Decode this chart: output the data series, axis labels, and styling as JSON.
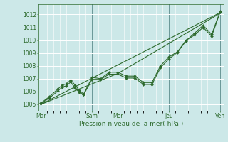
{
  "title": "",
  "xlabel": "Pression niveau de la mer( hPa )",
  "ylabel": "",
  "bg_color": "#cce8e8",
  "grid_color": "#ffffff",
  "line_color": "#2d6a2d",
  "tick_label_color": "#2d6a2d",
  "axis_label_color": "#2d6a2d",
  "ylim": [
    1004.5,
    1012.8
  ],
  "yticks": [
    1005,
    1006,
    1007,
    1008,
    1009,
    1010,
    1011,
    1012
  ],
  "x_day_labels": [
    "Mar",
    "",
    "Sam",
    "Mer",
    "",
    "Jeu",
    "",
    "Ven"
  ],
  "x_day_positions": [
    0,
    24,
    48,
    72,
    96,
    120,
    144,
    168
  ],
  "x_major_labels": [
    "Mar",
    "Sam",
    "Mer",
    "Jeu",
    "Ven"
  ],
  "x_major_positions": [
    0,
    48,
    72,
    120,
    168
  ],
  "vline_positions": [
    0,
    48,
    72,
    120,
    168
  ],
  "vline_color": "#5a8a8a",
  "series": [
    [
      0,
      1005.1,
      8,
      1005.6,
      16,
      1006.2,
      20,
      1006.5,
      24,
      1006.6,
      28,
      1006.9,
      32,
      1006.5,
      36,
      1006.1,
      40,
      1005.8,
      48,
      1007.1,
      56,
      1007.0,
      64,
      1007.5,
      72,
      1007.5,
      80,
      1007.2,
      88,
      1007.2,
      96,
      1006.7,
      104,
      1006.7,
      112,
      1008.0,
      120,
      1008.7,
      128,
      1009.1,
      136,
      1010.0,
      144,
      1010.4,
      152,
      1011.0,
      160,
      1010.3,
      168,
      1012.2
    ],
    [
      0,
      1005.05,
      8,
      1005.5,
      16,
      1006.05,
      20,
      1006.35,
      24,
      1006.45,
      28,
      1006.75,
      32,
      1006.25,
      36,
      1005.95,
      40,
      1005.75,
      48,
      1006.95,
      56,
      1006.95,
      64,
      1007.35,
      72,
      1007.35,
      80,
      1007.05,
      88,
      1007.05,
      96,
      1006.55,
      104,
      1006.55,
      112,
      1007.85,
      120,
      1008.55,
      128,
      1009.05,
      136,
      1009.95,
      144,
      1010.55,
      152,
      1011.15,
      160,
      1010.45,
      168,
      1012.25
    ],
    [
      0,
      1005.0,
      168,
      1012.15
    ],
    [
      0,
      1005.0,
      72,
      1007.4,
      168,
      1012.1
    ]
  ]
}
